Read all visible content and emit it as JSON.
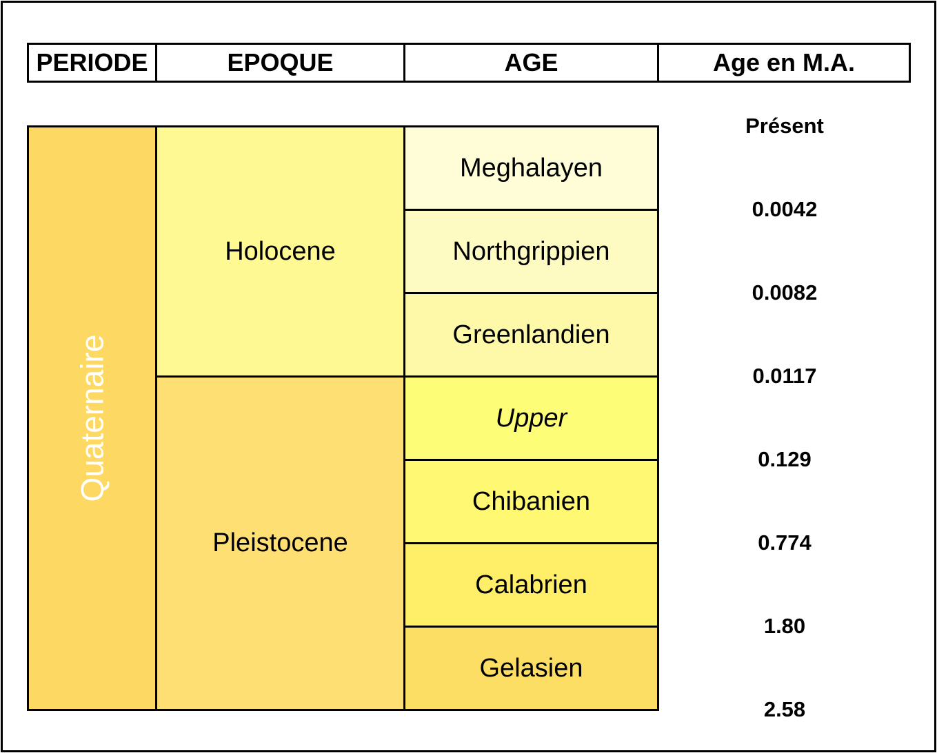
{
  "header": {
    "periode": "PERIODE",
    "epoque": "EPOQUE",
    "age": "AGE",
    "age_ma": "Age en M.A."
  },
  "period": {
    "name": "Quaternaire",
    "color": "#FDD862"
  },
  "epochs": [
    {
      "name": "Holocene",
      "color": "#FEF993"
    },
    {
      "name": "Pleistocene",
      "color": "#FEDF73"
    }
  ],
  "ages": [
    {
      "name": "Meghalayen",
      "color": "#FEFDD8",
      "italic": false
    },
    {
      "name": "Northgrippien",
      "color": "#FEFBC2",
      "italic": false
    },
    {
      "name": "Greenlandien",
      "color": "#FEF9A8",
      "italic": false
    },
    {
      "name": "Upper",
      "color": "#FEFD78",
      "italic": true
    },
    {
      "name": "Chibanien",
      "color": "#FEF872",
      "italic": false
    },
    {
      "name": "Calabrien",
      "color": "#FEEE68",
      "italic": false
    },
    {
      "name": "Gelasien",
      "color": "#FDDE65",
      "italic": false
    }
  ],
  "boundaries": [
    "Présent",
    "0.0042",
    "0.0082",
    "0.0117",
    "0.129",
    "0.774",
    "1.80",
    "2.58"
  ]
}
